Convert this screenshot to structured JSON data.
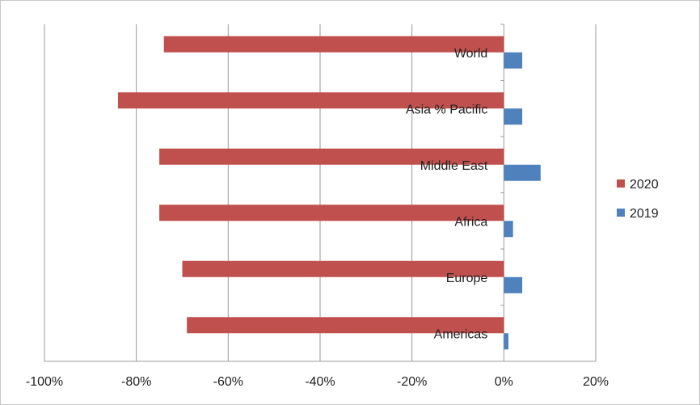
{
  "chart_data": {
    "type": "bar",
    "orientation": "horizontal",
    "categories": [
      "World",
      "Asia % Pacific",
      "Middle East",
      "Africa",
      "Europe",
      "Americas"
    ],
    "series": [
      {
        "name": "2020",
        "color": "#C0504D",
        "values": [
          -74,
          -84,
          -75,
          -75,
          -70,
          -69
        ]
      },
      {
        "name": "2019",
        "color": "#4F81BD",
        "values": [
          4,
          4,
          8,
          2,
          4,
          1
        ]
      }
    ],
    "xlim": [
      -100,
      20
    ],
    "xticks": [
      -100,
      -80,
      -60,
      -40,
      -20,
      0,
      20
    ],
    "xtick_labels": [
      "-100%",
      "-80%",
      "-60%",
      "-40%",
      "-20%",
      "0%",
      "20%"
    ],
    "grid": "vertical",
    "legend": "right"
  }
}
